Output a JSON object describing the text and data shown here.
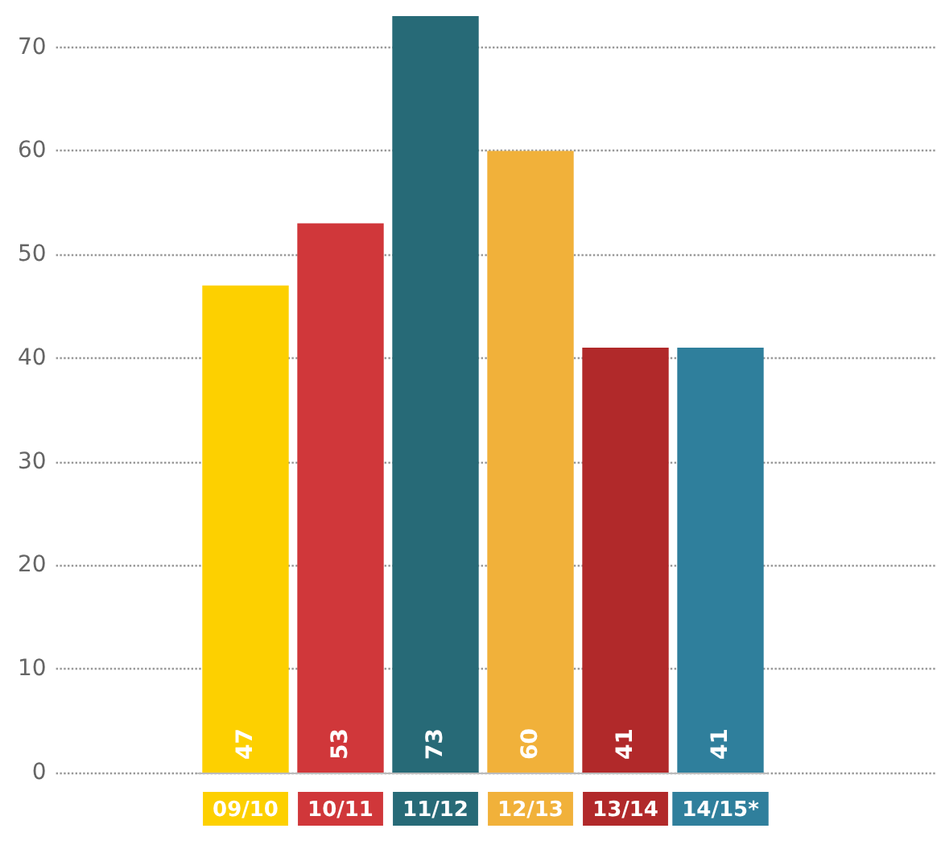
{
  "chart_data": {
    "type": "bar",
    "categories": [
      "09/10",
      "10/11",
      "11/12",
      "12/13",
      "13/14",
      "14/15*"
    ],
    "values": [
      47,
      53,
      73,
      60,
      41,
      41
    ],
    "colors": [
      "#fdd000",
      "#d0373a",
      "#276a77",
      "#f1b13a",
      "#b1292a",
      "#2f7f9c"
    ],
    "ylim": [
      0,
      73
    ],
    "yticks": [
      0,
      10,
      20,
      30,
      40,
      50,
      60,
      70
    ],
    "grid": "y",
    "data_labels": true
  }
}
